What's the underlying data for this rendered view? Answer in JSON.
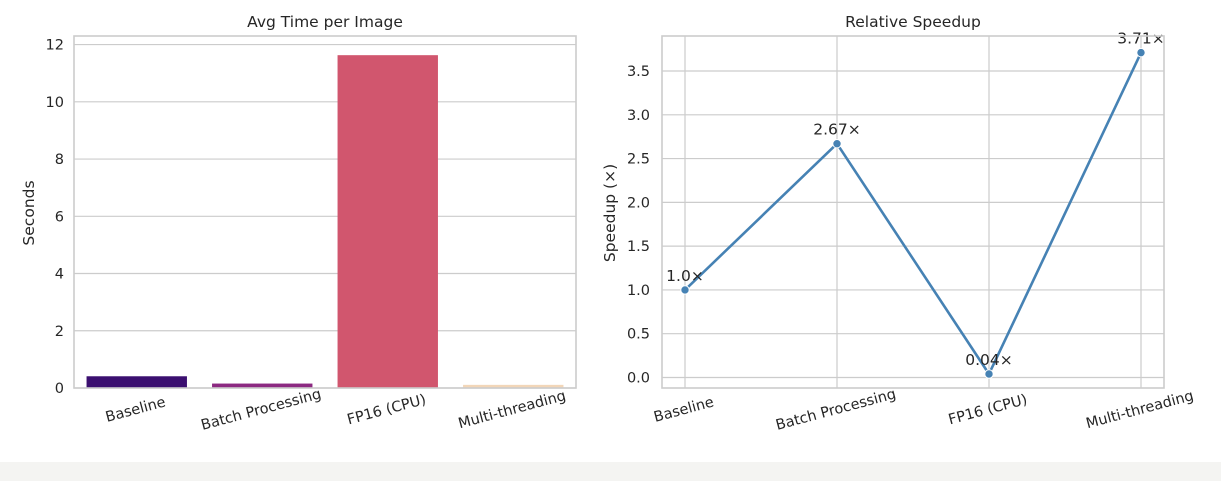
{
  "chart_data": [
    {
      "type": "bar",
      "title": "Avg Time per Image",
      "xlabel": "",
      "ylabel": "Seconds",
      "categories": [
        "Baseline",
        "Batch Processing",
        "FP16 (CPU)",
        "Multi-threading"
      ],
      "values": [
        0.41,
        0.155,
        11.63,
        0.11
      ],
      "colors": [
        "#3b0f70",
        "#8c2981",
        "#d1566e",
        "#f2d6b8"
      ],
      "ylim": [
        0,
        12.3
      ],
      "yticks": [
        0,
        2,
        4,
        6,
        8,
        10,
        12
      ],
      "grid": true
    },
    {
      "type": "line",
      "title": "Relative Speedup",
      "xlabel": "",
      "ylabel": "Speedup (×)",
      "categories": [
        "Baseline",
        "Batch Processing",
        "FP16 (CPU)",
        "Multi-threading"
      ],
      "values": [
        1.0,
        2.67,
        0.04,
        3.71
      ],
      "data_labels": [
        "1.0×",
        "2.67×",
        "0.04×",
        "3.71×"
      ],
      "color": "#4682b4",
      "ylim": [
        -0.12,
        3.9
      ],
      "yticks": [
        "0.0",
        "0.5",
        "1.0",
        "1.5",
        "2.0",
        "2.5",
        "3.0",
        "3.5"
      ],
      "grid": true
    }
  ]
}
